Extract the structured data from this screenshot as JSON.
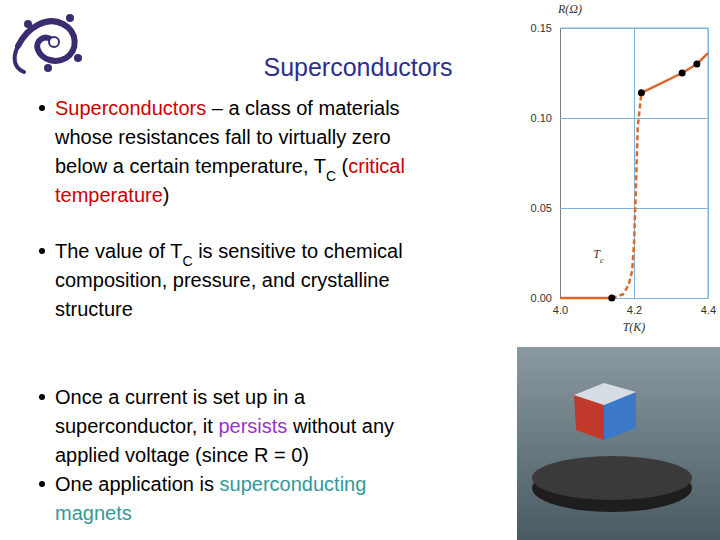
{
  "slide": {
    "title": "Superconductors",
    "bullets": [
      {
        "lines": [
          [
            {
              "text": "Superconductors",
              "color": "#cc0000"
            },
            {
              "text": " – a class of materials"
            }
          ],
          [
            {
              "text": "whose resistances fall to virtually zero"
            }
          ],
          [
            {
              "text": "below a certain temperature, T"
            },
            {
              "text": "C",
              "sub": true
            },
            {
              "text": " ("
            },
            {
              "text": "critical",
              "color": "#cc0000"
            }
          ],
          [
            {
              "text": "temperature",
              "color": "#cc0000"
            },
            {
              "text": ")"
            }
          ]
        ]
      },
      {
        "lines": [
          [
            {
              "text": "The value of T"
            },
            {
              "text": "C",
              "sub": true
            },
            {
              "text": " is sensitive to chemical"
            }
          ],
          [
            {
              "text": "composition, pressure, and crystalline"
            }
          ],
          [
            {
              "text": "structure"
            }
          ]
        ]
      },
      {
        "lines": [
          [
            {
              "text": "Once a current is set up in a"
            }
          ],
          [
            {
              "text": "superconductor, it "
            },
            {
              "text": "persists",
              "color": "#9933cc"
            },
            {
              "text": " without any"
            }
          ],
          [
            {
              "text": "applied voltage (since R = 0)"
            }
          ]
        ]
      },
      {
        "lines": [
          [
            {
              "text": "One application is "
            },
            {
              "text": "superconducting",
              "color": "#339999"
            }
          ],
          [
            {
              "text": "magnets",
              "color": "#339999"
            }
          ]
        ]
      }
    ]
  },
  "chart_data": {
    "type": "line",
    "x_label": "T(K)",
    "y_label": "R(Ω)",
    "xlim": [
      4.0,
      4.4
    ],
    "xticks": [
      {
        "value": 4.0,
        "label": "4.0"
      },
      {
        "value": 4.2,
        "label": "4.2"
      },
      {
        "value": 4.4,
        "label": "4.4"
      }
    ],
    "ylim": [
      0,
      0.15
    ],
    "yticks": [
      {
        "value": 0,
        "label": "0.00"
      },
      {
        "value": 0.05,
        "label": "0.05"
      },
      {
        "value": 0.1,
        "label": "0.10"
      },
      {
        "value": 0.15,
        "label": "0.15"
      }
    ],
    "grid": true,
    "series": [
      {
        "type": "line",
        "line_style": "solid",
        "color": "#d9692a",
        "x": [
          4.0,
          4.14
        ],
        "values": [
          0,
          0
        ]
      },
      {
        "type": "line",
        "line_style": "dashed",
        "color": "#d9692a",
        "x": [
          4.14,
          4.17,
          4.185,
          4.195,
          4.2,
          4.205,
          4.21,
          4.22
        ],
        "values": [
          0,
          0.002,
          0.007,
          0.015,
          0.03,
          0.06,
          0.095,
          0.114
        ]
      },
      {
        "type": "line",
        "line_style": "solid",
        "color": "#d9692a",
        "x": [
          4.22,
          4.33,
          4.37,
          4.4
        ],
        "values": [
          0.114,
          0.125,
          0.13,
          0.136
        ]
      },
      {
        "type": "scatter",
        "marker": "circle",
        "color": "#000000",
        "x": [
          4.14,
          4.22,
          4.33,
          4.37
        ],
        "values": [
          0,
          0.114,
          0.125,
          0.13
        ]
      }
    ],
    "annotations": [
      {
        "text": "T",
        "sub": "c",
        "x": 4.09,
        "y": 0.022
      }
    ]
  }
}
